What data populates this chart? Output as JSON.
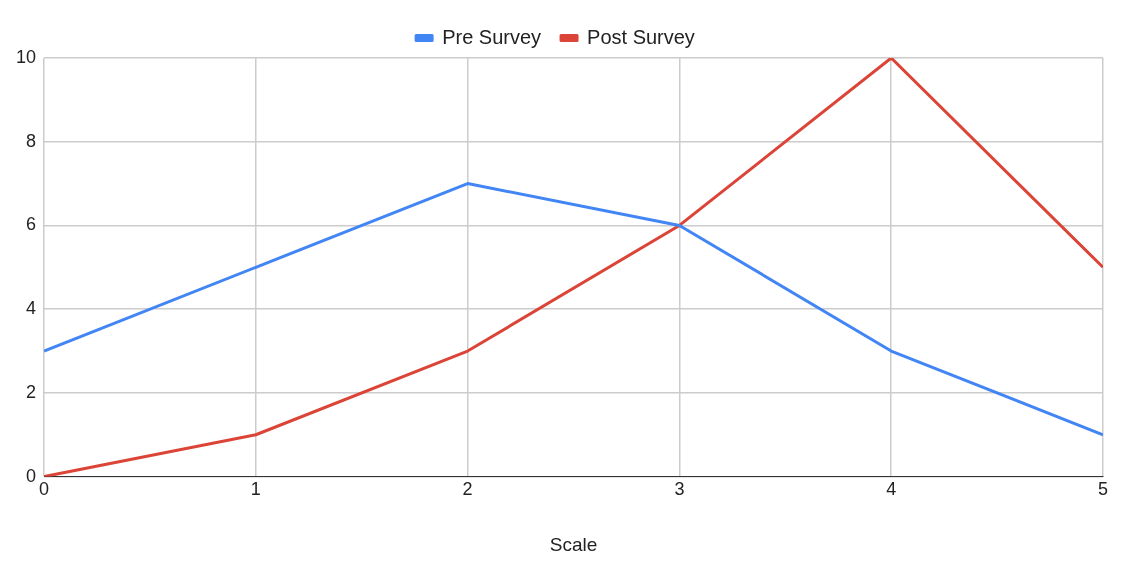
{
  "chart_data": {
    "type": "line",
    "xlabel": "Scale",
    "x": [
      0,
      1,
      2,
      3,
      4,
      5
    ],
    "series": [
      {
        "name": "Pre Survey",
        "color": "#4285f4",
        "values": [
          3,
          5,
          7,
          6,
          3,
          1
        ]
      },
      {
        "name": "Post Survey",
        "color": "#db4437",
        "values": [
          0,
          1,
          3,
          6,
          10,
          5
        ]
      }
    ],
    "xlim": [
      0,
      5
    ],
    "xticks": [
      0,
      1,
      2,
      3,
      4,
      5
    ],
    "ylim": [
      0,
      10
    ],
    "yticks": [
      0,
      2,
      4,
      6,
      8,
      10
    ],
    "grid": true,
    "legend": "top",
    "marker": "none",
    "line_style": "solid"
  }
}
